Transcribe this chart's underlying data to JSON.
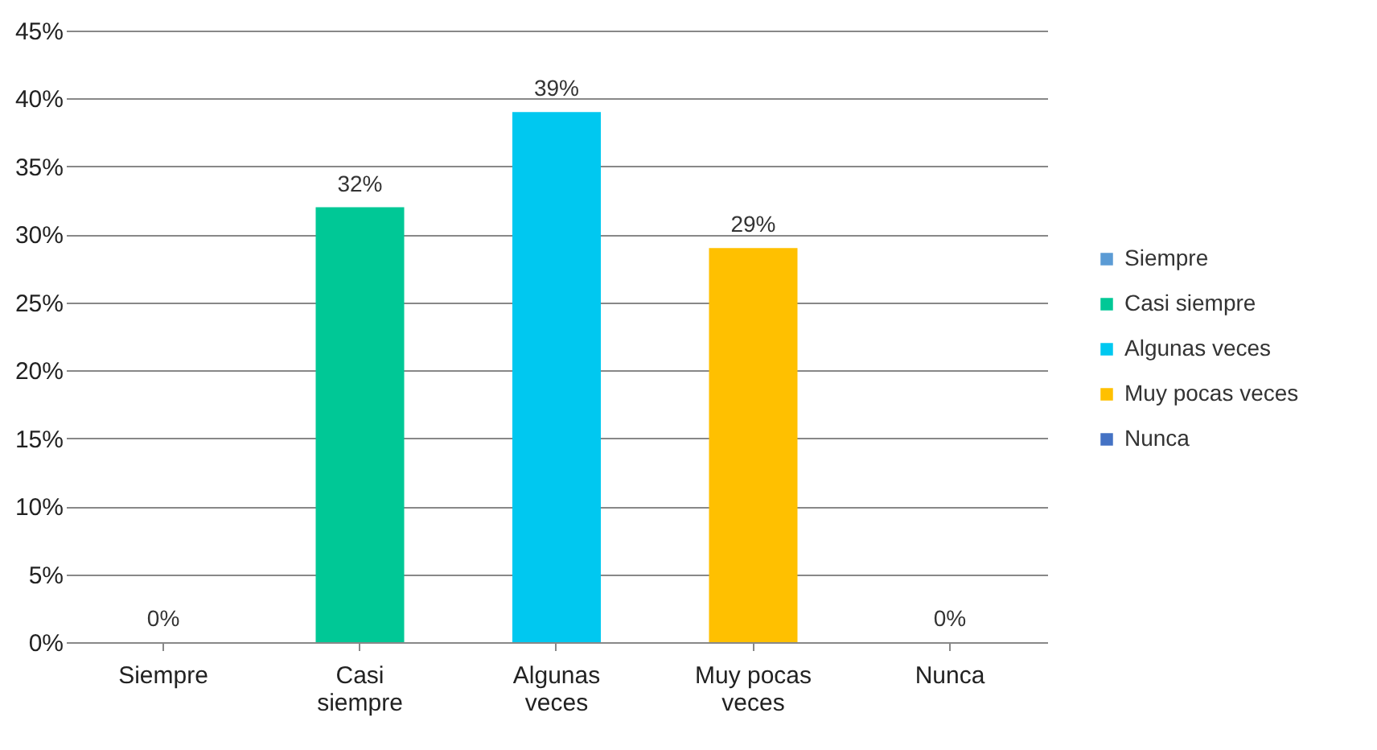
{
  "chart_data": {
    "type": "bar",
    "categories": [
      "Siempre",
      "Casi siempre",
      "Algunas veces",
      "Muy pocas veces",
      "Nunca"
    ],
    "series": [
      {
        "name": "Siempre",
        "color": "#5b9bd5",
        "values": [
          0,
          null,
          null,
          null,
          null
        ],
        "value_labels": [
          "0%",
          null,
          null,
          null,
          null
        ]
      },
      {
        "name": "Casi siempre",
        "color": "#00c896",
        "values": [
          null,
          32,
          null,
          null,
          null
        ],
        "value_labels": [
          null,
          "32%",
          null,
          null,
          null
        ]
      },
      {
        "name": "Algunas veces",
        "color": "#00c8f0",
        "values": [
          null,
          null,
          39,
          null,
          null
        ],
        "value_labels": [
          null,
          null,
          "39%",
          null,
          null
        ]
      },
      {
        "name": "Muy pocas veces",
        "color": "#ffc000",
        "values": [
          null,
          null,
          null,
          29,
          null
        ],
        "value_labels": [
          null,
          null,
          null,
          "29%",
          null
        ]
      },
      {
        "name": "Nunca",
        "color": "#4472c4",
        "values": [
          null,
          null,
          null,
          null,
          0
        ],
        "value_labels": [
          null,
          null,
          null,
          null,
          "0%"
        ]
      }
    ],
    "ylim": [
      0,
      45
    ],
    "yticks": [
      {
        "value": 0,
        "label": "0%"
      },
      {
        "value": 5,
        "label": "5%"
      },
      {
        "value": 10,
        "label": "10%"
      },
      {
        "value": 15,
        "label": "15%"
      },
      {
        "value": 20,
        "label": "20%"
      },
      {
        "value": 25,
        "label": "25%"
      },
      {
        "value": 30,
        "label": "30%"
      },
      {
        "value": 35,
        "label": "35%"
      },
      {
        "value": 40,
        "label": "40%"
      },
      {
        "value": 45,
        "label": "45%"
      }
    ],
    "grid": "y",
    "legend": "right"
  }
}
